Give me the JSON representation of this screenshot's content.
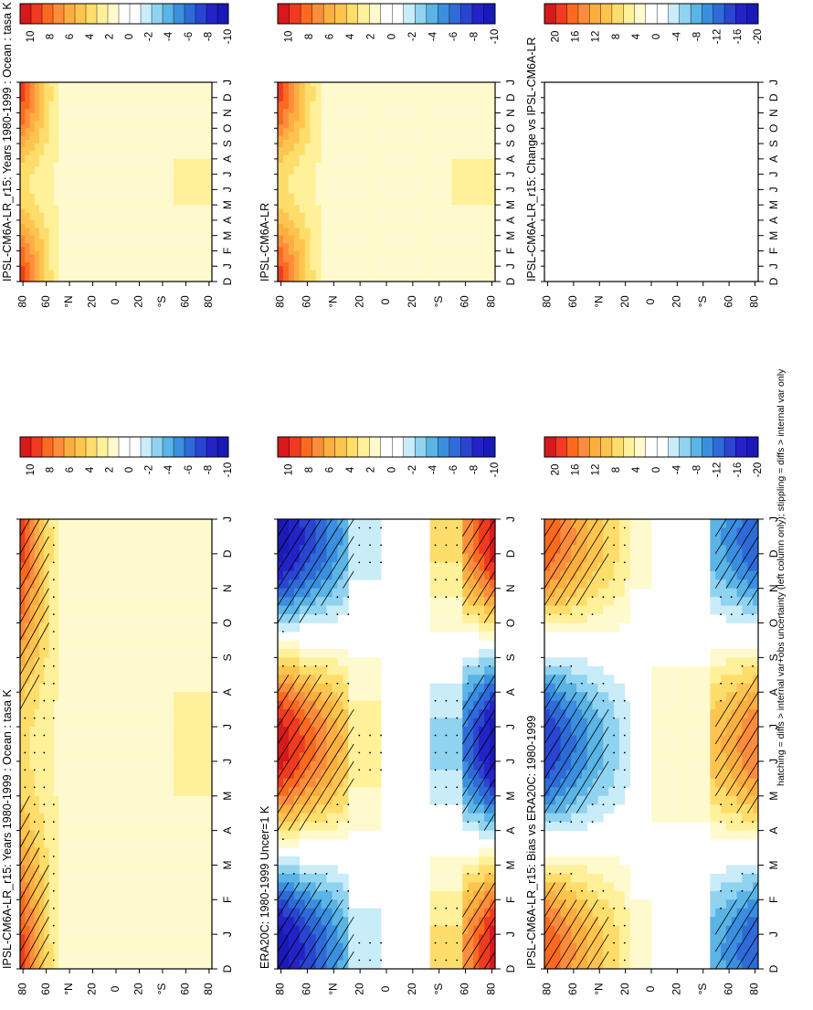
{
  "figure": {
    "footnote": "hatching = diffs > internal var+obs uncertainty (left column only); stippling = diffs > internal var only"
  },
  "chart_data": [
    {
      "type": "heatmap",
      "title": "IPSL-CM6A-LR_r15: Years 1980-1999 : Ocean : tasa K",
      "xlabel": "",
      "ylabel": "",
      "x_ticks": [
        "D",
        "J",
        "F",
        "M",
        "A",
        "M",
        "J",
        "J",
        "A",
        "S",
        "O",
        "N",
        "D",
        "J"
      ],
      "y_ticks": [
        "80",
        "60",
        "°N",
        "20",
        "0",
        "20",
        "°S",
        "60",
        "80"
      ],
      "colorbar": [
        "10",
        "8",
        "6",
        "4",
        "2",
        "0",
        "-2",
        "-4",
        "-6",
        "-8",
        "-10"
      ],
      "hatching": true,
      "pattern": "polar_warm"
    },
    {
      "type": "heatmap",
      "title": "ERA20C: 1980-1999 Uncer=1 K",
      "xlabel": "",
      "ylabel": "",
      "x_ticks": [
        "D",
        "J",
        "F",
        "M",
        "A",
        "M",
        "J",
        "J",
        "A",
        "S",
        "O",
        "N",
        "D",
        "J"
      ],
      "y_ticks": [
        "80",
        "60",
        "°N",
        "20",
        "0",
        "20",
        "°S",
        "60",
        "80"
      ],
      "colorbar": [
        "10",
        "8",
        "6",
        "4",
        "2",
        "0",
        "-2",
        "-4",
        "-6",
        "-8",
        "-10"
      ],
      "hatching": true,
      "pattern": "seasonal_reanalysis"
    },
    {
      "type": "heatmap",
      "title": "IPSL-CM6A-LR_r15: Bias vs ERA20C: 1980-1999",
      "xlabel": "",
      "ylabel": "",
      "x_ticks": [
        "D",
        "J",
        "F",
        "M",
        "A",
        "M",
        "J",
        "J",
        "A",
        "S",
        "O",
        "N",
        "D",
        "J"
      ],
      "y_ticks": [
        "80",
        "60",
        "°N",
        "20",
        "0",
        "20",
        "°S",
        "60",
        "80"
      ],
      "colorbar": [
        "20",
        "16",
        "12",
        "8",
        "4",
        "0",
        "-4",
        "-8",
        "-12",
        "-16",
        "-20"
      ],
      "hatching": true,
      "pattern": "bias"
    },
    {
      "type": "heatmap",
      "title": "IPSL-CM6A-LR_r15: Years 1980-1999 : Ocean : tasa K",
      "xlabel": "",
      "ylabel": "",
      "x_ticks": [
        "D",
        "J",
        "F",
        "M",
        "A",
        "M",
        "J",
        "J",
        "A",
        "S",
        "O",
        "N",
        "D",
        "J"
      ],
      "y_ticks": [
        "80",
        "60",
        "°N",
        "20",
        "0",
        "20",
        "°S",
        "60",
        "80"
      ],
      "colorbar": [
        "10",
        "8",
        "6",
        "4",
        "2",
        "0",
        "-2",
        "-4",
        "-6",
        "-8",
        "-10"
      ],
      "hatching": false,
      "pattern": "polar_warm"
    },
    {
      "type": "heatmap",
      "title": "IPSL-CM6A-LR",
      "xlabel": "",
      "ylabel": "",
      "x_ticks": [
        "D",
        "J",
        "F",
        "M",
        "A",
        "M",
        "J",
        "J",
        "A",
        "S",
        "O",
        "N",
        "D",
        "J"
      ],
      "y_ticks": [
        "80",
        "60",
        "°N",
        "20",
        "0",
        "20",
        "°S",
        "60",
        "80"
      ],
      "colorbar": [
        "10",
        "8",
        "6",
        "4",
        "2",
        "0",
        "-2",
        "-4",
        "-6",
        "-8",
        "-10"
      ],
      "hatching": false,
      "pattern": "polar_warm"
    },
    {
      "type": "heatmap",
      "title": "IPSL-CM6A-LR_r15: Change vs IPSL-CM6A-LR",
      "xlabel": "",
      "ylabel": "",
      "x_ticks": [
        "D",
        "J",
        "F",
        "M",
        "A",
        "M",
        "J",
        "J",
        "A",
        "S",
        "O",
        "N",
        "D",
        "J"
      ],
      "y_ticks": [
        "80",
        "60",
        "°N",
        "20",
        "0",
        "20",
        "°S",
        "60",
        "80"
      ],
      "colorbar": [
        "20",
        "16",
        "12",
        "8",
        "4",
        "0",
        "-4",
        "-8",
        "-12",
        "-16",
        "-20"
      ],
      "hatching": false,
      "pattern": "empty"
    }
  ],
  "colors": {
    "scale": [
      "#d7191c",
      "#f03b20",
      "#fd6a1f",
      "#fd8d3c",
      "#fdae40",
      "#fec44f",
      "#fedd6b",
      "#fff09a",
      "#fffacd",
      "#ffffff",
      "#ffffff",
      "#c9ecf9",
      "#8fd3f0",
      "#5ab4e5",
      "#3a8fe0",
      "#2e6bd8",
      "#2a45d1",
      "#2323c7",
      "#1a1ab8"
    ]
  }
}
